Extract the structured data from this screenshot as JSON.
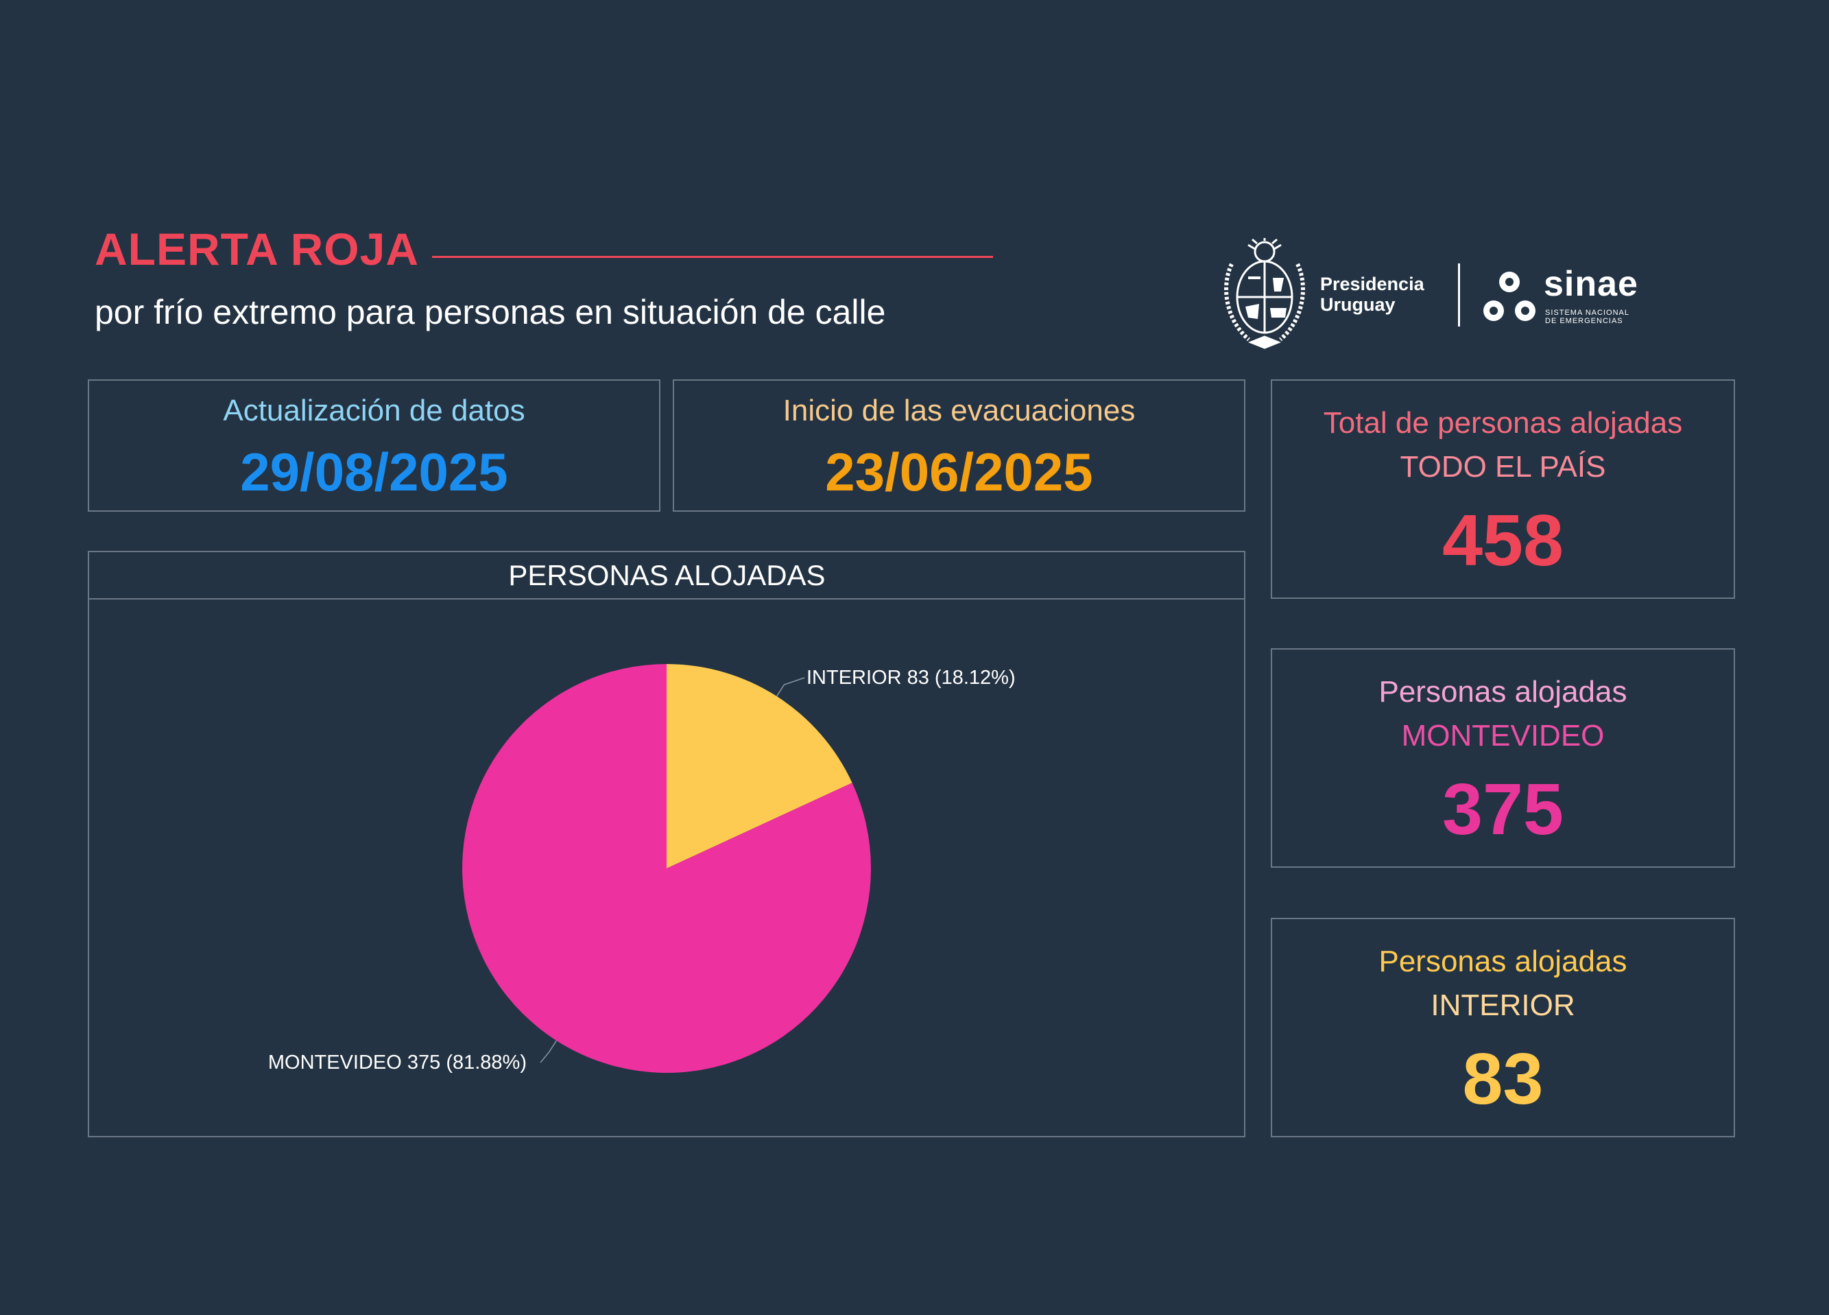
{
  "header": {
    "title": "ALERTA ROJA",
    "subtitle": "por frío extremo para personas en situación de calle"
  },
  "logos": {
    "presidencia": [
      "Presidencia",
      "Uruguay"
    ],
    "sinae_name": "sinae",
    "sinae_sub": [
      "SISTEMA NACIONAL",
      "DE EMERGENCIAS"
    ]
  },
  "update": {
    "label": "Actualización de datos",
    "date": "29/08/2025"
  },
  "evacuation": {
    "label": "Inicio de las evacuaciones",
    "date": "23/06/2025"
  },
  "stats": [
    {
      "label": "Total de personas alojadas",
      "region": "TODO EL PAÍS",
      "value": "458"
    },
    {
      "label": "Personas alojadas",
      "region": "MONTEVIDEO",
      "value": "375"
    },
    {
      "label": "Personas alojadas",
      "region": "INTERIOR",
      "value": "83"
    }
  ],
  "colors": {
    "background": "#233343",
    "alert_red": "#ee4658",
    "update_label": "#8fd4f4",
    "update_date": "#1a8ef0",
    "evac_label": "#f6c98b",
    "evac_date": "#f5a011",
    "total_label": "#f46b7e",
    "total_sub": "#f78a98",
    "total_value": "#ee4658",
    "mvd_label": "#f5a3d6",
    "mvd_sub": "#ec4fa5",
    "mvd_value": "#e8369a",
    "int_label": "#ffc94f",
    "int_sub": "#ffd89a",
    "int_value": "#ffc94f"
  },
  "chart_data": {
    "type": "pie",
    "title": "PERSONAS ALOJADAS",
    "slices": [
      {
        "label": "INTERIOR 83 (18.12%)",
        "name": "INTERIOR",
        "value": 83,
        "percent": 18.12,
        "color": "#fecb52"
      },
      {
        "label": "MONTEVIDEO 375 (81.88%)",
        "name": "MONTEVIDEO",
        "value": 375,
        "percent": 81.88,
        "color": "#ed319e"
      }
    ]
  }
}
